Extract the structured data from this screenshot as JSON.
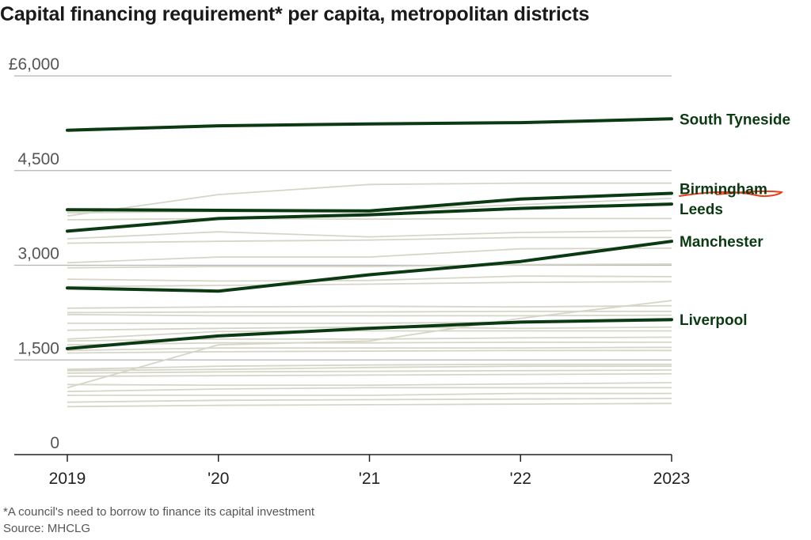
{
  "title": "Capital financing requirement* per capita, metropolitan districts",
  "footnote": "*A council's need to borrow to finance its capital investment",
  "source": "Source: MHCLG",
  "colors": {
    "highlight": "#0b3a12",
    "background_series": "#d6d6c8",
    "grid": "#b5b5b5",
    "annotation": "#e8401c"
  },
  "chart_data": {
    "type": "line",
    "x": [
      "2019",
      "'20",
      "'21",
      "'22",
      "2023"
    ],
    "ylim": [
      0,
      6000
    ],
    "yticks": [
      0,
      1500,
      3000,
      4500,
      6000
    ],
    "ytick_labels": [
      "0",
      "1,500",
      "3,000",
      "4,500",
      "£6,000"
    ],
    "grid": true,
    "highlighted_series": [
      {
        "name": "South Tyneside",
        "values": [
          5140,
          5210,
          5240,
          5260,
          5320
        ]
      },
      {
        "name": "Birmingham",
        "values": [
          3880,
          3870,
          3860,
          4050,
          4140
        ]
      },
      {
        "name": "Leeds",
        "values": [
          3540,
          3740,
          3800,
          3900,
          3970
        ]
      },
      {
        "name": "Manchester",
        "values": [
          2640,
          2590,
          2850,
          3060,
          3380
        ]
      },
      {
        "name": "Liverpool",
        "values": [
          1680,
          1880,
          2000,
          2100,
          2140
        ]
      }
    ],
    "other_series": [
      [
        3780,
        4120,
        4280,
        4300,
        4300
      ],
      [
        3830,
        3850,
        3860,
        3960,
        4060
      ],
      [
        3720,
        3740,
        3730,
        3740,
        3740
      ],
      [
        3420,
        3530,
        3450,
        3520,
        3550
      ],
      [
        3350,
        3380,
        3400,
        3440,
        3440
      ],
      [
        3040,
        3130,
        3130,
        3260,
        3270
      ],
      [
        2960,
        2980,
        2980,
        3010,
        3020
      ],
      [
        2780,
        2750,
        2760,
        2830,
        2820
      ],
      [
        2660,
        2680,
        2700,
        2730,
        2740
      ],
      [
        2320,
        2340,
        2350,
        2340,
        2360
      ],
      [
        2250,
        2260,
        2260,
        2270,
        2270
      ],
      [
        2220,
        2200,
        2200,
        2200,
        2210
      ],
      [
        2080,
        2080,
        2080,
        2100,
        2120
      ],
      [
        1970,
        2000,
        2020,
        2000,
        2020
      ],
      [
        1830,
        1950,
        1960,
        1960,
        1960
      ],
      [
        1800,
        1830,
        1830,
        1850,
        1860
      ],
      [
        1740,
        1770,
        1770,
        1780,
        1780
      ],
      [
        1650,
        1690,
        1690,
        1690,
        1700
      ],
      [
        1610,
        1630,
        1640,
        1650,
        1650
      ],
      [
        1350,
        1400,
        1420,
        1430,
        1430
      ],
      [
        1330,
        1350,
        1380,
        1400,
        1400
      ],
      [
        1290,
        1310,
        1320,
        1330,
        1340
      ],
      [
        1240,
        1250,
        1260,
        1270,
        1280
      ],
      [
        1110,
        1100,
        1100,
        1120,
        1140
      ],
      [
        1060,
        1740,
        1800,
        2160,
        2440
      ],
      [
        1000,
        1040,
        1060,
        1060,
        1060
      ],
      [
        940,
        940,
        940,
        970,
        970
      ],
      [
        830,
        860,
        870,
        880,
        890
      ],
      [
        760,
        780,
        790,
        800,
        810
      ]
    ]
  }
}
